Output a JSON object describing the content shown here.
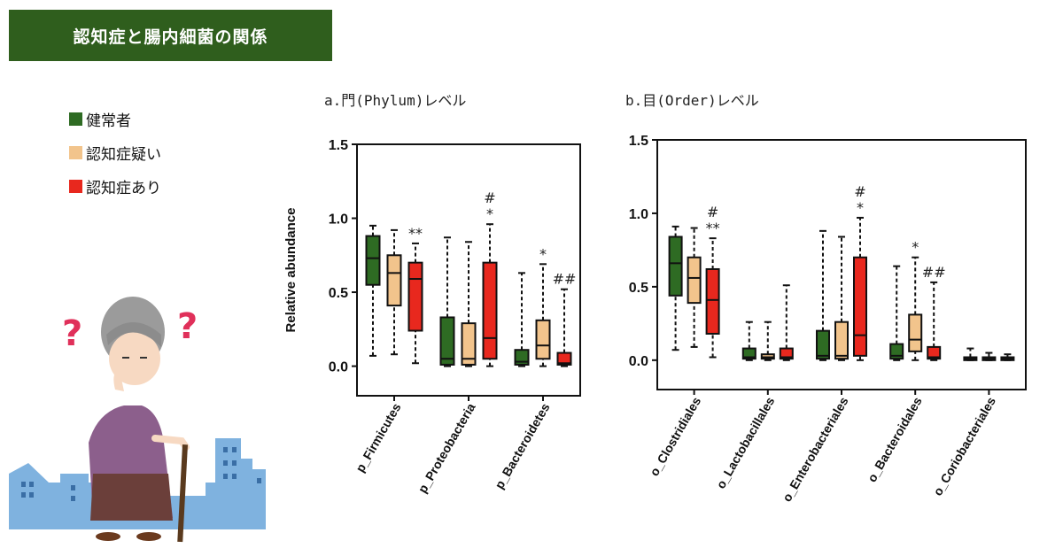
{
  "banner": {
    "title": "認知症と腸内細菌の関係"
  },
  "legend": [
    {
      "label": "健常者",
      "color": "#2e6b23"
    },
    {
      "label": "認知症疑い",
      "color": "#f2c48c"
    },
    {
      "label": "認知症あり",
      "color": "#e8281e"
    }
  ],
  "illustration": {
    "marks": [
      "?",
      "?"
    ]
  },
  "chart_data": [
    {
      "type": "box",
      "title": "a.門(Phylum)レベル",
      "ylabel": "Relative abundance",
      "ylim": [
        -0.2,
        1.5
      ],
      "yticks": [
        "0.0",
        "0.5",
        "1.0",
        "1.5"
      ],
      "categories": [
        "p_Firmicutes",
        "p_Proteobacteria",
        "p_Bacteroidetes"
      ],
      "series_colors": [
        "#2e6b23",
        "#f2c48c",
        "#e8281e"
      ],
      "groups": [
        {
          "boxes": [
            {
              "min": 0.07,
              "q1": 0.55,
              "median": 0.73,
              "q3": 0.88,
              "max": 0.95
            },
            {
              "min": 0.08,
              "q1": 0.41,
              "median": 0.63,
              "q3": 0.75,
              "max": 0.92
            },
            {
              "min": 0.02,
              "q1": 0.24,
              "median": 0.59,
              "q3": 0.7,
              "max": 0.83
            }
          ],
          "annotations": [
            "",
            "",
            "**"
          ]
        },
        {
          "boxes": [
            {
              "min": 0.0,
              "q1": 0.01,
              "median": 0.05,
              "q3": 0.33,
              "max": 0.87
            },
            {
              "min": 0.0,
              "q1": 0.01,
              "median": 0.05,
              "q3": 0.29,
              "max": 0.84
            },
            {
              "min": 0.0,
              "q1": 0.05,
              "median": 0.19,
              "q3": 0.7,
              "max": 0.96
            }
          ],
          "annotations": [
            "",
            "",
            "#\n*"
          ]
        },
        {
          "boxes": [
            {
              "min": 0.0,
              "q1": 0.01,
              "median": 0.03,
              "q3": 0.11,
              "max": 0.63
            },
            {
              "min": 0.0,
              "q1": 0.05,
              "median": 0.14,
              "q3": 0.31,
              "max": 0.69
            },
            {
              "min": 0.0,
              "q1": 0.01,
              "median": 0.02,
              "q3": 0.09,
              "max": 0.52
            }
          ],
          "annotations": [
            "",
            "*",
            "##"
          ]
        }
      ]
    },
    {
      "type": "box",
      "title": "b.目(Order)レベル",
      "ylabel": "",
      "ylim": [
        -0.2,
        1.5
      ],
      "yticks": [
        "0.0",
        "0.5",
        "1.0",
        "1.5"
      ],
      "categories": [
        "o_Clostridiales",
        "o_Lactobacillales",
        "o_Enterobacteriales",
        "o_Bacteroidales",
        "o_Coriobacteriales"
      ],
      "series_colors": [
        "#2e6b23",
        "#f2c48c",
        "#e8281e"
      ],
      "groups": [
        {
          "boxes": [
            {
              "min": 0.07,
              "q1": 0.44,
              "median": 0.66,
              "q3": 0.84,
              "max": 0.91
            },
            {
              "min": 0.09,
              "q1": 0.39,
              "median": 0.56,
              "q3": 0.7,
              "max": 0.9
            },
            {
              "min": 0.02,
              "q1": 0.18,
              "median": 0.41,
              "q3": 0.62,
              "max": 0.83
            }
          ],
          "annotations": [
            "",
            "",
            "#\n**"
          ]
        },
        {
          "boxes": [
            {
              "min": 0.0,
              "q1": 0.01,
              "median": 0.02,
              "q3": 0.08,
              "max": 0.26
            },
            {
              "min": 0.0,
              "q1": 0.01,
              "median": 0.02,
              "q3": 0.04,
              "max": 0.26
            },
            {
              "min": 0.0,
              "q1": 0.01,
              "median": 0.02,
              "q3": 0.08,
              "max": 0.51
            }
          ],
          "annotations": [
            "",
            "",
            ""
          ]
        },
        {
          "boxes": [
            {
              "min": 0.0,
              "q1": 0.01,
              "median": 0.03,
              "q3": 0.2,
              "max": 0.88
            },
            {
              "min": 0.0,
              "q1": 0.01,
              "median": 0.03,
              "q3": 0.26,
              "max": 0.84
            },
            {
              "min": 0.0,
              "q1": 0.03,
              "median": 0.17,
              "q3": 0.7,
              "max": 0.97
            }
          ],
          "annotations": [
            "",
            "",
            "#\n*"
          ]
        },
        {
          "boxes": [
            {
              "min": 0.0,
              "q1": 0.01,
              "median": 0.03,
              "q3": 0.11,
              "max": 0.64
            },
            {
              "min": 0.0,
              "q1": 0.06,
              "median": 0.14,
              "q3": 0.31,
              "max": 0.7
            },
            {
              "min": 0.0,
              "q1": 0.01,
              "median": 0.02,
              "q3": 0.09,
              "max": 0.53
            }
          ],
          "annotations": [
            "",
            "*",
            "##"
          ]
        },
        {
          "boxes": [
            {
              "min": 0.0,
              "q1": 0.0,
              "median": 0.01,
              "q3": 0.02,
              "max": 0.08
            },
            {
              "min": 0.0,
              "q1": 0.0,
              "median": 0.01,
              "q3": 0.02,
              "max": 0.05
            },
            {
              "min": 0.0,
              "q1": 0.0,
              "median": 0.01,
              "q3": 0.02,
              "max": 0.04
            }
          ],
          "annotations": [
            "",
            "",
            ""
          ]
        }
      ]
    }
  ]
}
